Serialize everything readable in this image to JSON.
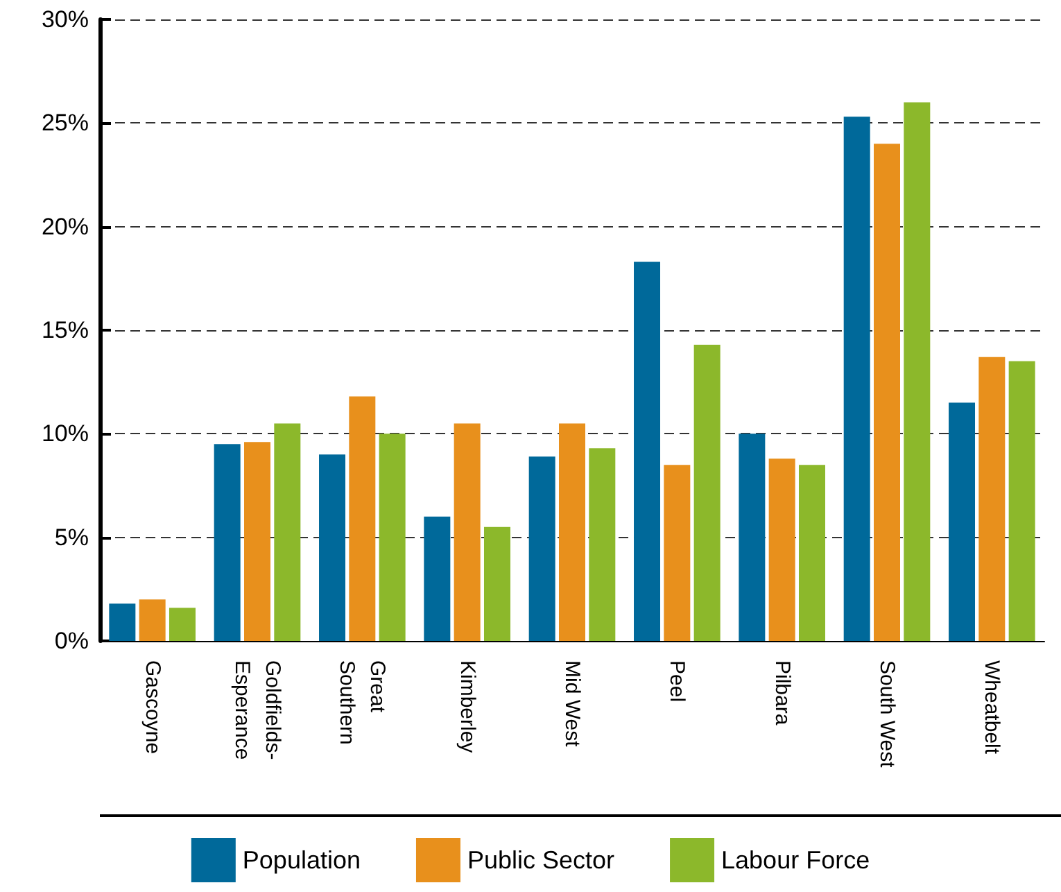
{
  "chart_data": {
    "type": "bar",
    "categories": [
      "Gascoyne",
      "Goldfields-Esperance",
      "Great Southern",
      "Kimberley",
      "Mid West",
      "Peel",
      "Pilbara",
      "South West",
      "Wheatbelt"
    ],
    "series": [
      {
        "name": "Population",
        "color": "#00699a",
        "values": [
          1.8,
          9.5,
          9.0,
          6.0,
          8.9,
          18.3,
          10.0,
          25.3,
          11.5
        ]
      },
      {
        "name": "Public Sector",
        "color": "#e8901c",
        "values": [
          2.0,
          9.6,
          11.8,
          10.5,
          10.5,
          8.5,
          8.8,
          24.0,
          13.7
        ]
      },
      {
        "name": "Labour Force",
        "color": "#8cb82b",
        "values": [
          1.6,
          10.5,
          10.0,
          5.5,
          9.3,
          14.3,
          8.5,
          26.0,
          13.5
        ]
      }
    ],
    "ylim": [
      0,
      30
    ],
    "yticks": [
      {
        "value": 0,
        "label": "0%"
      },
      {
        "value": 5,
        "label": "5%"
      },
      {
        "value": 10,
        "label": "10%"
      },
      {
        "value": 15,
        "label": "15%"
      },
      {
        "value": 20,
        "label": "20%"
      },
      {
        "value": 25,
        "label": "25%"
      },
      {
        "value": 30,
        "label": "30%"
      }
    ],
    "grid": "y",
    "legend": "bottom"
  }
}
